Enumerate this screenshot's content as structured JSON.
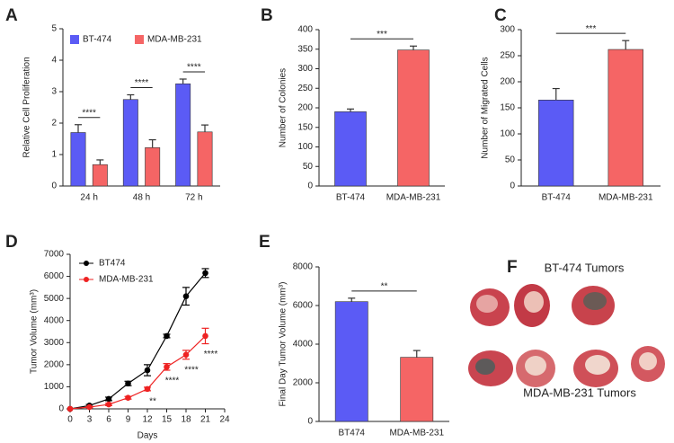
{
  "chart_data": [
    {
      "type": "bar",
      "panel": "A",
      "ylabel": "Relative Cell Proliferation",
      "categories": [
        "24 h",
        "48 h",
        "72 h"
      ],
      "series": [
        {
          "name": "BT-474",
          "color": "#5b5bf5",
          "values": [
            1.7,
            2.75,
            3.25
          ],
          "errors": [
            0.25,
            0.15,
            0.15
          ]
        },
        {
          "name": "MDA-MB-231",
          "color": "#f56565",
          "values": [
            0.68,
            1.22,
            1.72
          ],
          "errors": [
            0.15,
            0.25,
            0.22
          ]
        }
      ],
      "ylim": [
        0,
        5
      ],
      "yticks": [
        0,
        1,
        2,
        3,
        4,
        5
      ],
      "legend": "top",
      "annotations": [
        "****",
        "****",
        "****"
      ]
    },
    {
      "type": "bar",
      "panel": "B",
      "ylabel": "Number of Colonies",
      "categories": [
        "BT-474",
        "MDA-MB-231"
      ],
      "values": [
        190,
        348
      ],
      "errors": [
        7,
        10
      ],
      "colors": [
        "#5b5bf5",
        "#f56565"
      ],
      "ylim": [
        0,
        400
      ],
      "yticks": [
        0,
        50,
        100,
        150,
        200,
        250,
        300,
        350,
        400
      ],
      "annotations": [
        "***"
      ]
    },
    {
      "type": "bar",
      "panel": "C",
      "ylabel": "Number of Migrated Cells",
      "categories": [
        "BT-474",
        "MDA-MB-231"
      ],
      "values": [
        165,
        262
      ],
      "errors": [
        22,
        17
      ],
      "colors": [
        "#5b5bf5",
        "#f56565"
      ],
      "ylim": [
        0,
        300
      ],
      "yticks": [
        0,
        50,
        100,
        150,
        200,
        250,
        300
      ],
      "annotations": [
        "***"
      ]
    },
    {
      "type": "line",
      "panel": "D",
      "ylabel": "Tumor Volume (mm³)",
      "xlabel": "Days",
      "x": [
        0,
        3,
        6,
        9,
        12,
        15,
        18,
        21
      ],
      "series": [
        {
          "name": "BT474",
          "color": "#000000",
          "values": [
            0,
            150,
            450,
            1150,
            1750,
            3300,
            5100,
            6150
          ],
          "errors": [
            0,
            50,
            80,
            100,
            250,
            80,
            400,
            200
          ]
        },
        {
          "name": "MDA-MB-231",
          "color": "#ee2222",
          "values": [
            0,
            80,
            200,
            500,
            900,
            1900,
            2450,
            3300
          ],
          "errors": [
            0,
            30,
            50,
            60,
            80,
            150,
            200,
            350
          ]
        }
      ],
      "xlim": [
        0,
        24
      ],
      "xticks": [
        0,
        3,
        6,
        9,
        12,
        15,
        18,
        21,
        24
      ],
      "ylim": [
        0,
        7000
      ],
      "yticks": [
        0,
        1000,
        2000,
        3000,
        4000,
        5000,
        6000,
        7000
      ],
      "legend": "top-left",
      "annotations": [
        "**",
        "****",
        "****",
        "****"
      ]
    },
    {
      "type": "bar",
      "panel": "E",
      "ylabel": "Final Day Tumor Volume (mm³)",
      "categories": [
        "BT474",
        "MDA-MB-231"
      ],
      "values": [
        6200,
        3320
      ],
      "errors": [
        180,
        350
      ],
      "colors": [
        "#5b5bf5",
        "#f56565"
      ],
      "ylim": [
        0,
        8000
      ],
      "yticks": [
        0,
        2000,
        4000,
        6000,
        8000
      ],
      "annotations": [
        "**"
      ]
    }
  ],
  "photo": {
    "panel": "F",
    "top_label": "BT-474 Tumors",
    "bottom_label": "MDA-MB-231 Tumors"
  }
}
